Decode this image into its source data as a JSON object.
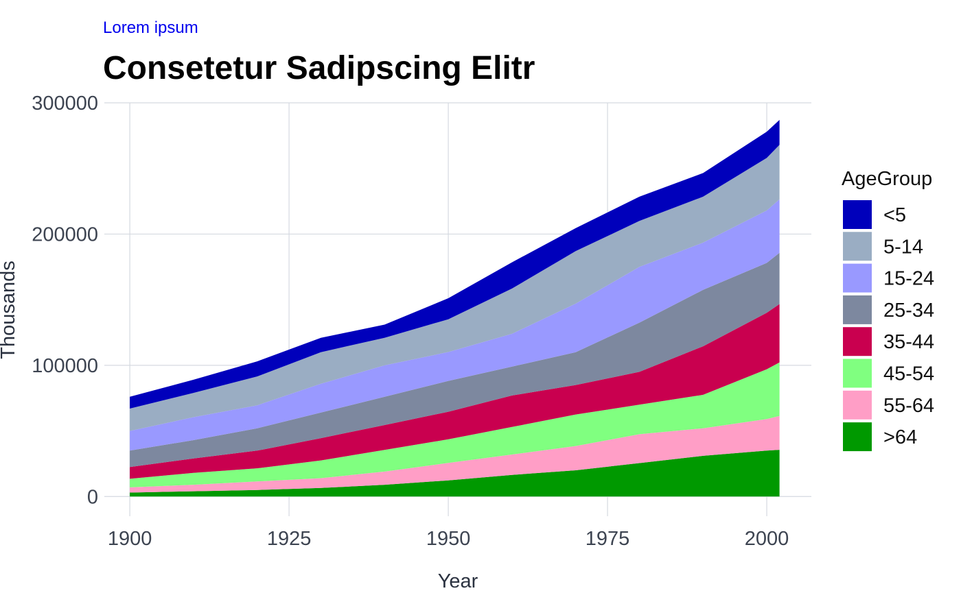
{
  "chart_data": {
    "type": "area",
    "stacked": true,
    "subtitle": "Lorem ipsum",
    "title": "Consetetur Sadipscing Elitr",
    "xlabel": "Year",
    "ylabel": "Thousands",
    "xlim": [
      1896,
      2007
    ],
    "ylim": [
      -15000,
      300000
    ],
    "x_ticks": [
      1900,
      1925,
      1950,
      1975,
      2000
    ],
    "y_ticks": [
      0,
      100000,
      200000,
      300000
    ],
    "grid": true,
    "legend_title": "AgeGroup",
    "legend_position": "right",
    "x": [
      1900,
      1910,
      1920,
      1930,
      1940,
      1950,
      1960,
      1970,
      1980,
      1990,
      2000,
      2002
    ],
    "series": [
      {
        "name": ">64",
        "color": "#009900",
        "values": [
          3000,
          4000,
          5000,
          6500,
          9000,
          12300,
          16500,
          20000,
          25500,
          31000,
          35000,
          35600
        ]
      },
      {
        "name": "55-64",
        "color": "#ff9ec6",
        "values": [
          4000,
          5000,
          6500,
          7500,
          10000,
          13300,
          15500,
          18500,
          22000,
          21000,
          24000,
          25800
        ]
      },
      {
        "name": "45-54",
        "color": "#80ff80",
        "values": [
          6500,
          9000,
          10000,
          13500,
          16500,
          18000,
          21000,
          24000,
          22500,
          25500,
          38000,
          40800
        ]
      },
      {
        "name": "35-44",
        "color": "#c9004f",
        "values": [
          9000,
          11000,
          13500,
          17000,
          19000,
          21000,
          24000,
          22500,
          25000,
          37000,
          43000,
          44500
        ]
      },
      {
        "name": "25-34",
        "color": "#7d889f",
        "values": [
          12500,
          14000,
          17000,
          19500,
          21500,
          23500,
          22000,
          25000,
          37500,
          43000,
          38000,
          39000
        ]
      },
      {
        "name": "15-24",
        "color": "#9999ff",
        "values": [
          15000,
          17500,
          17500,
          22000,
          24000,
          22000,
          25000,
          37000,
          42500,
          36000,
          40000,
          40800
        ]
      },
      {
        "name": "5-14",
        "color": "#9aadc3",
        "values": [
          17000,
          18500,
          22000,
          24000,
          21000,
          25000,
          34500,
          40000,
          35000,
          35000,
          40000,
          41500
        ]
      },
      {
        "name": "<5",
        "color": "#0000bb",
        "values": [
          9000,
          10000,
          11500,
          11000,
          10000,
          16000,
          20000,
          17500,
          18500,
          18000,
          20000,
          19000
        ]
      }
    ],
    "colors": {
      "grid": "#d5d9e0",
      "tick_text": "#3d4451"
    }
  }
}
